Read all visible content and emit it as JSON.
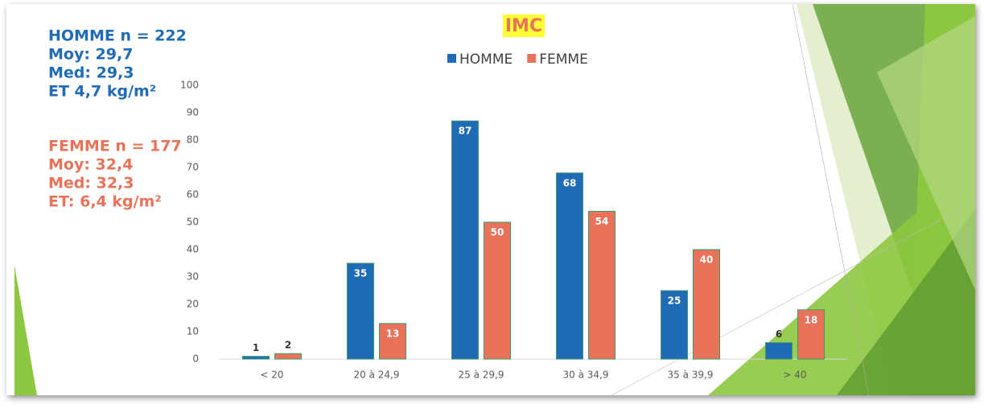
{
  "chart_data": {
    "type": "bar",
    "title": "IMC",
    "categories": [
      "< 20",
      "20 à 24,9",
      "25 à 29,9",
      "30 à 34,9",
      "35 à 39,9",
      "> 40"
    ],
    "series": [
      {
        "name": "HOMME",
        "color": "#1f6bb5",
        "values": [
          1,
          35,
          87,
          68,
          25,
          6
        ]
      },
      {
        "name": "FEMME",
        "color": "#e8735a",
        "values": [
          2,
          13,
          50,
          54,
          40,
          18
        ]
      }
    ],
    "ylim": [
      0,
      100
    ],
    "yticks": [
      0,
      10,
      20,
      30,
      40,
      50,
      60,
      70,
      80,
      90,
      100
    ],
    "grid": false,
    "legend": "top"
  },
  "stats": {
    "homme": [
      "HOMME n = 222",
      "Moy: 29,7",
      "Med: 29,3",
      "ET 4,7 kg/m²"
    ],
    "femme": [
      "FEMME n = 177",
      "Moy: 32,4",
      "Med: 32,3",
      "ET: 6,4 kg/m²"
    ]
  }
}
